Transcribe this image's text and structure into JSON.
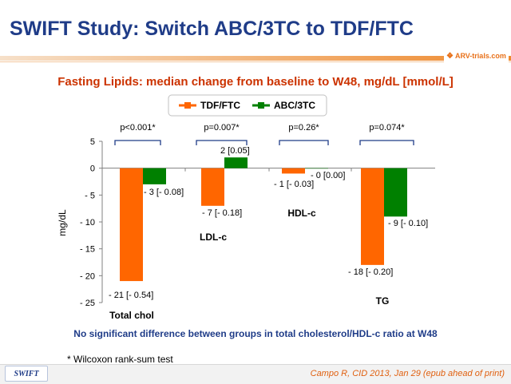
{
  "header": {
    "title": "SWIFT Study: Switch ABC/3TC to TDF/FTC",
    "logo_text": "ARV-trials.com"
  },
  "subtitle": "Fasting Lipids: median change from baseline to W48, mg/dL [mmol/L]",
  "chart_data": {
    "type": "bar",
    "categories": [
      "Total chol",
      "LDL-c",
      "HDL-c",
      "TG"
    ],
    "series": [
      {
        "name": "TDF/FTC",
        "color": "#ff6600",
        "values": [
          -21,
          -7,
          -1,
          -18
        ]
      },
      {
        "name": "ABC/3TC",
        "color": "#008000",
        "values": [
          -3,
          2,
          0,
          -9
        ]
      }
    ],
    "data_labels": [
      [
        "- 21 [- 0.54]",
        "- 7 [- 0.18]",
        "- 1 [- 0.03]",
        "- 18 [- 0.20]"
      ],
      [
        "- 3 [- 0.08]",
        "2 [0.05]",
        "- 0 [0.00]",
        "- 9 [- 0.10]"
      ]
    ],
    "p_values": [
      "p<0.001*",
      "p=0.007*",
      "p=0.26*",
      "p=0.074*"
    ],
    "ylabel": "mg/dL",
    "xlabel": "",
    "ylim": [
      -25,
      5
    ],
    "yticks": [
      5,
      0,
      -5,
      -10,
      -15,
      -20,
      -25
    ],
    "ytick_labels": [
      "5",
      "0",
      "- 5",
      "- 10",
      "- 15",
      "- 20",
      "- 25"
    ],
    "legend_position": "top-center",
    "grid": false
  },
  "note": "No significant difference between groups in total cholesterol/HDL-c ratio at W48",
  "footnote": "* Wilcoxon rank-sum test",
  "footer": {
    "tag": "SWIFT",
    "citation": "Campo R, CID 2013, Jan 29 (epub ahead of print)"
  }
}
